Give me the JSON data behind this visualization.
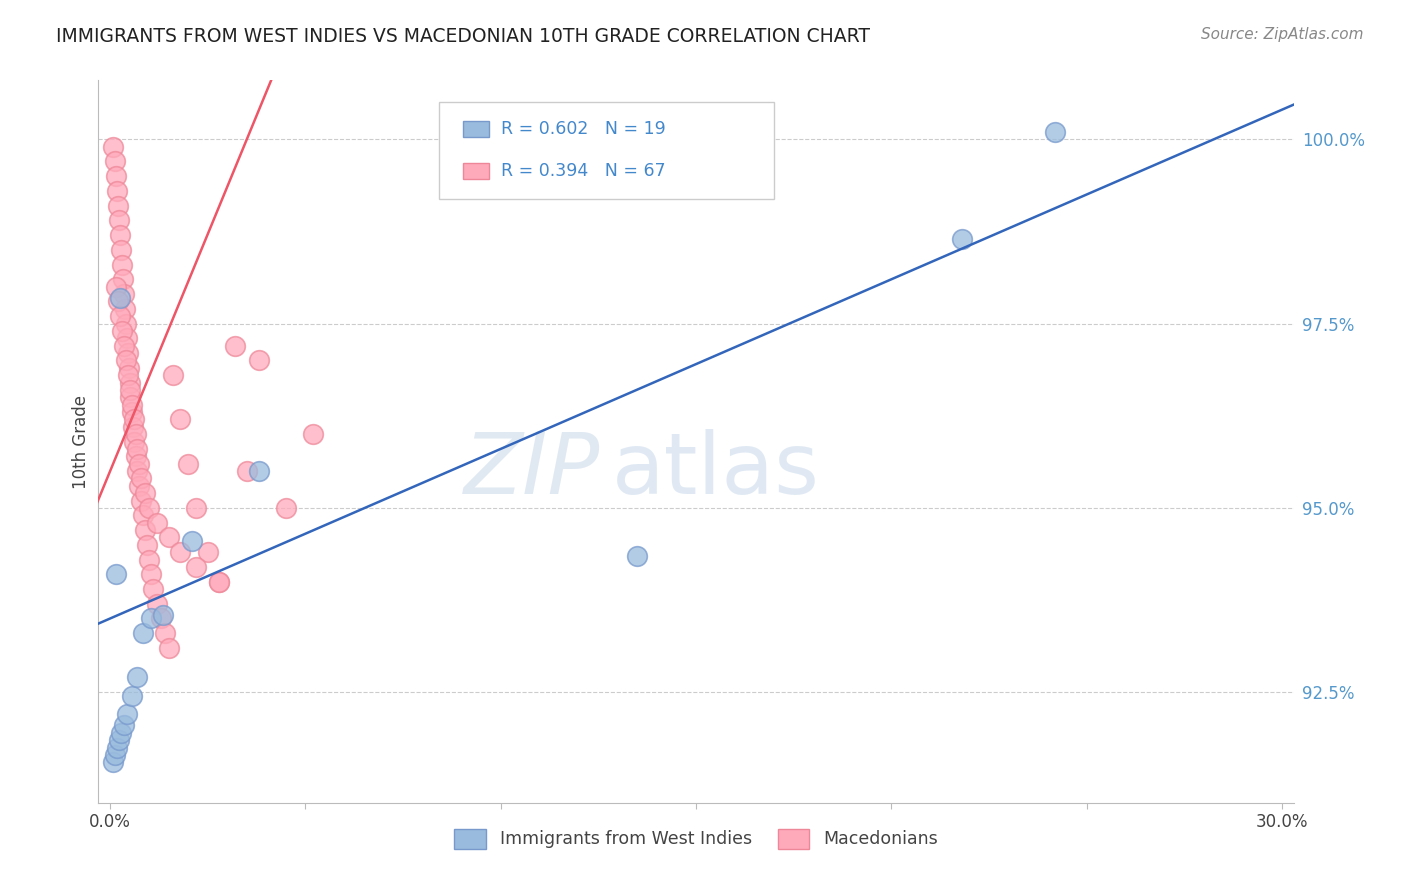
{
  "title": "IMMIGRANTS FROM WEST INDIES VS MACEDONIAN 10TH GRADE CORRELATION CHART",
  "source": "Source: ZipAtlas.com",
  "legend_label_blue": "Immigrants from West Indies",
  "legend_label_pink": "Macedonians",
  "legend_R_blue": "R = 0.602",
  "legend_N_blue": "N = 19",
  "legend_R_pink": "R = 0.394",
  "legend_N_pink": "N = 67",
  "blue_color": "#99BBDD",
  "blue_edge_color": "#7799CC",
  "pink_color": "#FFAABB",
  "pink_edge_color": "#EE8899",
  "blue_line_color": "#3366BB",
  "pink_line_color": "#EE5566",
  "xmin": 0.0,
  "xmax": 30.0,
  "ymin": 91.0,
  "ymax": 100.8,
  "yticks": [
    92.5,
    95.0,
    97.5,
    100.0
  ],
  "xtick_labels_show": [
    "0.0%",
    "30.0%"
  ],
  "watermark_color": "#DDEEFF",
  "blue_scatter_x": [
    0.08,
    0.12,
    0.18,
    0.22,
    0.28,
    0.35,
    0.42,
    0.55,
    0.68,
    0.85,
    1.05,
    1.35,
    2.1,
    3.8,
    0.15,
    0.25,
    13.5,
    21.8,
    24.2
  ],
  "blue_scatter_y": [
    91.55,
    91.65,
    91.75,
    91.85,
    91.95,
    92.05,
    92.2,
    92.45,
    92.7,
    93.3,
    93.5,
    93.55,
    94.55,
    95.5,
    94.1,
    97.85,
    94.35,
    98.65,
    100.1
  ],
  "pink_scatter_x": [
    0.08,
    0.12,
    0.15,
    0.18,
    0.2,
    0.22,
    0.25,
    0.28,
    0.3,
    0.32,
    0.35,
    0.38,
    0.4,
    0.42,
    0.45,
    0.48,
    0.5,
    0.52,
    0.55,
    0.58,
    0.6,
    0.65,
    0.7,
    0.75,
    0.8,
    0.85,
    0.9,
    0.95,
    1.0,
    1.05,
    1.1,
    1.2,
    1.3,
    1.4,
    1.5,
    1.6,
    1.8,
    2.0,
    2.2,
    2.5,
    2.8,
    3.2,
    3.8,
    5.2,
    0.15,
    0.2,
    0.25,
    0.3,
    0.35,
    0.4,
    0.45,
    0.5,
    0.55,
    0.6,
    0.65,
    0.7,
    0.75,
    0.8,
    0.9,
    1.0,
    1.2,
    1.5,
    1.8,
    2.2,
    2.8,
    3.5,
    4.5
  ],
  "pink_scatter_y": [
    99.9,
    99.7,
    99.5,
    99.3,
    99.1,
    98.9,
    98.7,
    98.5,
    98.3,
    98.1,
    97.9,
    97.7,
    97.5,
    97.3,
    97.1,
    96.9,
    96.7,
    96.5,
    96.3,
    96.1,
    95.9,
    95.7,
    95.5,
    95.3,
    95.1,
    94.9,
    94.7,
    94.5,
    94.3,
    94.1,
    93.9,
    93.7,
    93.5,
    93.3,
    93.1,
    96.8,
    96.2,
    95.6,
    95.0,
    94.4,
    94.0,
    97.2,
    97.0,
    96.0,
    98.0,
    97.8,
    97.6,
    97.4,
    97.2,
    97.0,
    96.8,
    96.6,
    96.4,
    96.2,
    96.0,
    95.8,
    95.6,
    95.4,
    95.2,
    95.0,
    94.8,
    94.6,
    94.4,
    94.2,
    94.0,
    95.5,
    95.0
  ]
}
